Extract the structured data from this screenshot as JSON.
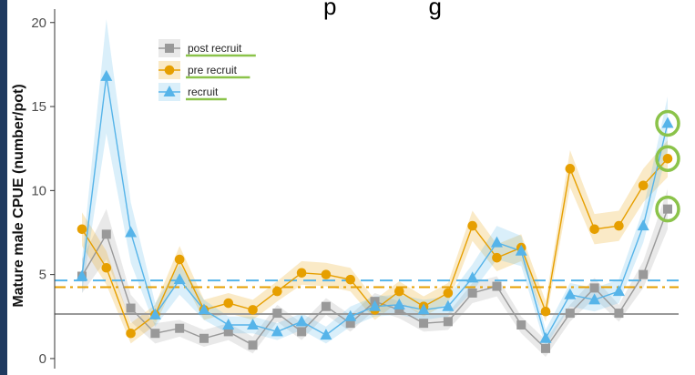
{
  "chart_data": {
    "type": "line",
    "title": "p              g",
    "ylabel": "Mature male CPUE (number/pot)",
    "xlabel": "",
    "ylim": [
      -0.6,
      20.8
    ],
    "yticks": [
      0,
      5,
      10,
      15,
      20
    ],
    "grid": false,
    "legend": "top-left",
    "series": [
      {
        "name": "post recruit",
        "color": "#999999",
        "marker": "square",
        "values": [
          4.9,
          7.4,
          3.0,
          1.5,
          1.8,
          1.2,
          1.6,
          0.8,
          2.7,
          1.6,
          3.1,
          2.1,
          3.4,
          2.9,
          2.1,
          2.2,
          3.9,
          4.3,
          2.0,
          0.6,
          2.7,
          4.2,
          2.7,
          5.0,
          8.9
        ],
        "band": [
          1.0,
          1.5,
          0.8,
          0.6,
          0.5,
          0.5,
          0.5,
          0.5,
          0.5,
          0.5,
          0.5,
          0.5,
          0.5,
          0.5,
          0.5,
          0.5,
          0.6,
          0.6,
          0.5,
          0.5,
          0.5,
          0.6,
          0.5,
          0.8,
          1.2
        ]
      },
      {
        "name": "pre recruit",
        "color": "#E69F00",
        "marker": "circle",
        "values": [
          7.7,
          5.4,
          1.5,
          2.6,
          5.9,
          2.9,
          3.3,
          2.9,
          4.0,
          5.1,
          5.0,
          4.7,
          2.9,
          4.0,
          3.1,
          3.9,
          7.9,
          6.0,
          6.6,
          2.8,
          11.3,
          7.7,
          7.9,
          10.3,
          11.9
        ],
        "band": [
          1.0,
          1.0,
          0.6,
          0.6,
          0.8,
          0.6,
          0.6,
          0.6,
          0.6,
          0.7,
          0.7,
          0.7,
          0.6,
          0.6,
          0.6,
          0.6,
          0.9,
          0.8,
          0.8,
          0.6,
          1.1,
          0.9,
          0.9,
          1.0,
          1.1
        ]
      },
      {
        "name": "recruit",
        "color": "#56B4E9",
        "marker": "triangle",
        "values": [
          4.9,
          16.8,
          7.5,
          2.6,
          4.7,
          2.9,
          2.0,
          2.0,
          1.6,
          2.2,
          1.4,
          2.5,
          3.1,
          3.2,
          2.9,
          3.1,
          4.8,
          6.9,
          6.4,
          1.2,
          3.8,
          3.5,
          4.0,
          7.9,
          14.0
        ],
        "band": [
          1.0,
          3.4,
          1.8,
          0.7,
          0.9,
          0.6,
          0.5,
          0.5,
          0.5,
          0.5,
          0.5,
          0.6,
          0.6,
          0.6,
          0.6,
          0.6,
          0.8,
          1.0,
          0.9,
          0.5,
          0.7,
          0.7,
          0.7,
          1.0,
          1.6
        ]
      }
    ],
    "reference_lines": [
      {
        "series": "recruit",
        "value": 4.65,
        "style": "dashed",
        "color": "#56B4E9"
      },
      {
        "series": "pre recruit",
        "value": 4.25,
        "style": "dashdot",
        "color": "#E69F00"
      },
      {
        "series": "post recruit",
        "value": 2.65,
        "style": "solid",
        "color": "#999999"
      }
    ],
    "highlight_color": "#8BC34A",
    "highlighted_points": [
      "last point of each series"
    ]
  }
}
